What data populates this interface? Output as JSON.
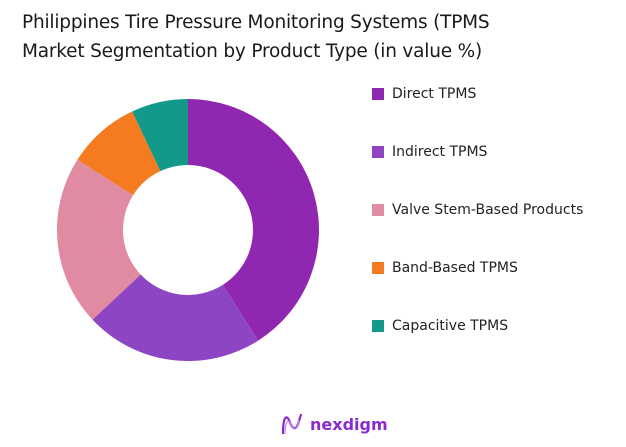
{
  "title_lines": [
    "Philippines Tire Pressure Monitoring Systems (TPMS",
    "Market Segmentation by Product Type (in value %)"
  ],
  "chart_data": {
    "type": "pie",
    "donut": true,
    "title": "Philippines Tire Pressure Monitoring Systems (TPMS Market Segmentation by Product Type (in value %)",
    "categories": [
      "Direct TPMS",
      "Indirect TPMS",
      "Valve Stem-Based Products",
      "Band-Based TPMS",
      "Capacitive TPMS"
    ],
    "values": [
      41,
      22,
      21,
      9,
      7
    ],
    "colors": [
      "#9027b0",
      "#8d45c4",
      "#e08ba1",
      "#f47b20",
      "#12998a"
    ],
    "legend_position": "right"
  },
  "logo": {
    "text": "nexdigm",
    "color": "#8a2bd0"
  }
}
